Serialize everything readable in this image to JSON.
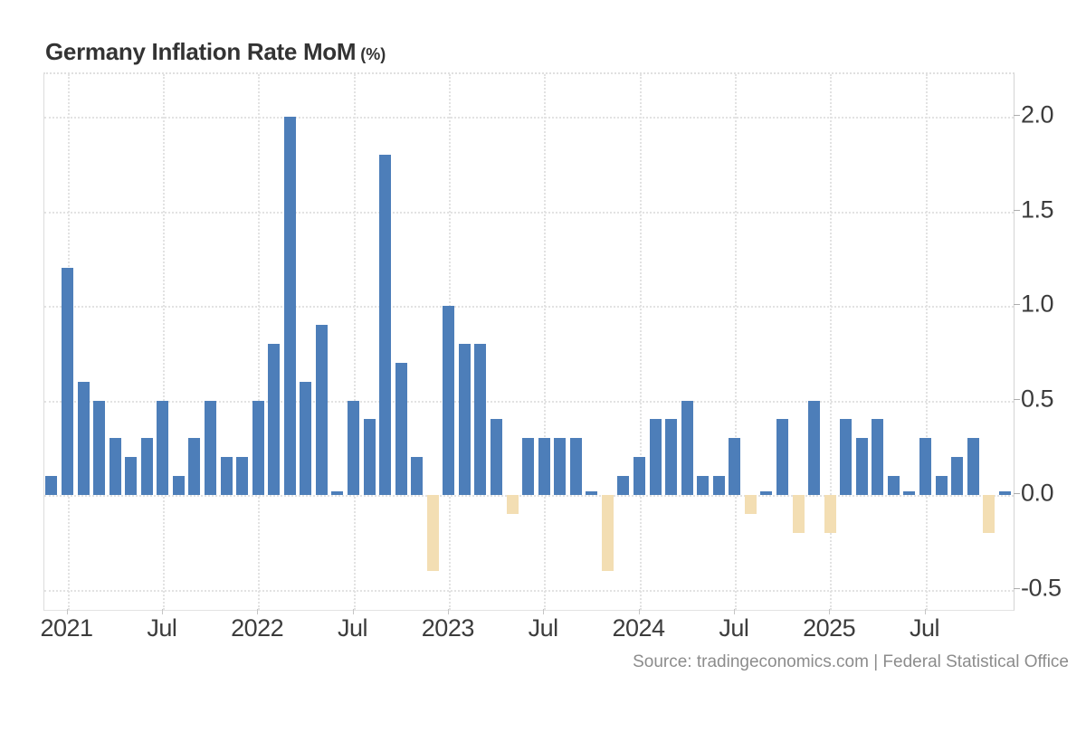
{
  "header": {
    "title": "Germany Inflation Rate MoM",
    "unit": "(%)"
  },
  "footer": {
    "source": "Source: tradingeconomics.com | Federal Statistical Office"
  },
  "chart_data": {
    "type": "bar",
    "title": "Germany Inflation Rate MoM (%)",
    "xlabel": "",
    "ylabel": "",
    "grid": "dotted",
    "legend": "none",
    "ylim": [
      -0.61,
      2.22
    ],
    "positive_color": "#4D7EB9",
    "negative_color": "#F3DEB3",
    "x": [
      "2020-12",
      "2021-01",
      "2021-02",
      "2021-03",
      "2021-04",
      "2021-05",
      "2021-06",
      "2021-07",
      "2021-08",
      "2021-09",
      "2021-10",
      "2021-11",
      "2021-12",
      "2022-01",
      "2022-02",
      "2022-03",
      "2022-04",
      "2022-05",
      "2022-06",
      "2022-07",
      "2022-08",
      "2022-09",
      "2022-10",
      "2022-11",
      "2022-12",
      "2023-01",
      "2023-02",
      "2023-03",
      "2023-04",
      "2023-05",
      "2023-06",
      "2023-07",
      "2023-08",
      "2023-09",
      "2023-10",
      "2023-11",
      "2023-12",
      "2024-01",
      "2024-02",
      "2024-03",
      "2024-04",
      "2024-05",
      "2024-06",
      "2024-07",
      "2024-08",
      "2024-09",
      "2024-10",
      "2024-11",
      "2024-12",
      "2025-01",
      "2025-02",
      "2025-03",
      "2025-04",
      "2025-05",
      "2025-06",
      "2025-07",
      "2025-08",
      "2025-09",
      "2025-10",
      "2025-11",
      "2025-12"
    ],
    "values": [
      0.1,
      1.2,
      0.6,
      0.5,
      0.3,
      0.2,
      0.3,
      0.5,
      0.1,
      0.3,
      0.5,
      0.2,
      0.2,
      0.5,
      0.8,
      2.0,
      0.6,
      0.9,
      0.0,
      0.5,
      0.4,
      1.8,
      0.7,
      0.2,
      -0.4,
      1.0,
      0.8,
      0.8,
      0.4,
      -0.1,
      0.3,
      0.3,
      0.3,
      0.3,
      0.0,
      -0.4,
      0.1,
      0.2,
      0.4,
      0.4,
      0.5,
      0.1,
      0.1,
      0.3,
      -0.1,
      0.0,
      0.4,
      -0.2,
      0.5,
      -0.2,
      0.4,
      0.3,
      0.4,
      0.1,
      0.0,
      0.3,
      0.1,
      0.2,
      0.3,
      -0.2,
      0.0
    ],
    "x_ticks": [
      {
        "label": "2021",
        "month": "2021-01"
      },
      {
        "label": "Jul",
        "month": "2021-07"
      },
      {
        "label": "2022",
        "month": "2022-01"
      },
      {
        "label": "Jul",
        "month": "2022-07"
      },
      {
        "label": "2023",
        "month": "2023-01"
      },
      {
        "label": "Jul",
        "month": "2023-07"
      },
      {
        "label": "2024",
        "month": "2024-01"
      },
      {
        "label": "Jul",
        "month": "2024-07"
      },
      {
        "label": "2025",
        "month": "2025-01"
      },
      {
        "label": "Jul",
        "month": "2025-07"
      }
    ],
    "y_ticks": [
      {
        "label": "2.0",
        "value": 2.0
      },
      {
        "label": "1.5",
        "value": 1.5
      },
      {
        "label": "1.0",
        "value": 1.0
      },
      {
        "label": "0.5",
        "value": 0.5
      },
      {
        "label": "0.0",
        "value": 0.0
      },
      {
        "label": "-0.5",
        "value": -0.5
      }
    ]
  }
}
